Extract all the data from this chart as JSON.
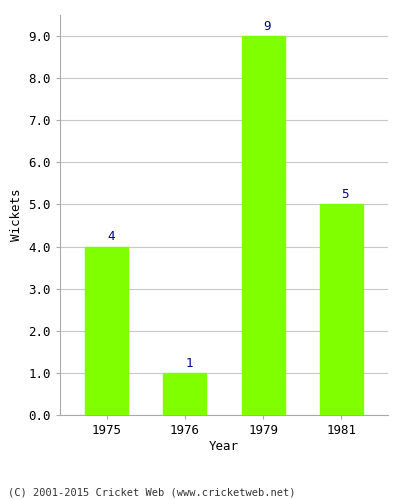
{
  "years": [
    "1975",
    "1976",
    "1979",
    "1981"
  ],
  "wickets": [
    4,
    1,
    9,
    5
  ],
  "bar_color": "#7FFF00",
  "bar_edge_color": "#7FFF00",
  "ylabel": "Wickets",
  "xlabel": "Year",
  "ylim_max": 9.5,
  "yticks": [
    0.0,
    1.0,
    2.0,
    3.0,
    4.0,
    5.0,
    6.0,
    7.0,
    8.0,
    9.0
  ],
  "label_color": "#00008B",
  "label_fontsize": 9,
  "axis_label_fontsize": 9,
  "tick_fontsize": 9,
  "footer_text": "(C) 2001-2015 Cricket Web (www.cricketweb.net)",
  "footer_fontsize": 7.5,
  "background_color": "#ffffff",
  "grid_color": "#c8c8c8",
  "bar_width": 0.55
}
